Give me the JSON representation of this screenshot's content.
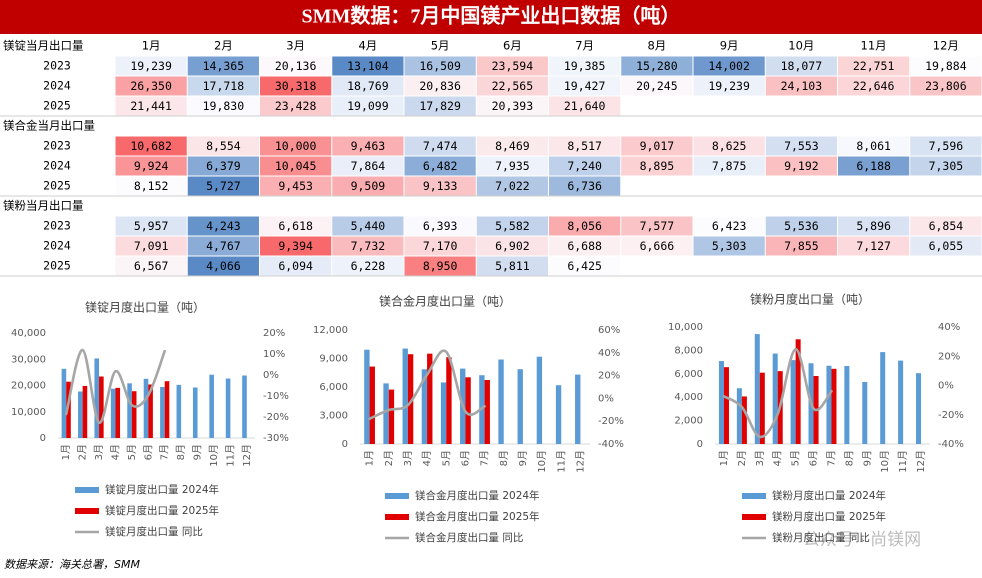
{
  "title": "SMM数据：7月中国镁产业出口数据（吨）",
  "table": {
    "columns": [
      "1月",
      "2月",
      "3月",
      "4月",
      "5月",
      "6月",
      "7月",
      "8月",
      "9月",
      "10月",
      "11月",
      "12月"
    ],
    "color_scale": {
      "low": "#5a8ac6",
      "mid": "#fcfcff",
      "high": "#f8696b"
    },
    "sections": [
      {
        "name": "镁锭当月出口量",
        "rows": [
          {
            "label": "2023",
            "cells": [
              "19,239",
              "14,365",
              "20,136",
              "13,104",
              "16,509",
              "23,594",
              "19,385",
              "15,280",
              "14,002",
              "18,077",
              "22,751",
              "19,884"
            ]
          },
          {
            "label": "2024",
            "cells": [
              "26,350",
              "17,718",
              "30,318",
              "18,769",
              "20,836",
              "22,565",
              "19,427",
              "20,245",
              "19,239",
              "24,103",
              "22,646",
              "23,806"
            ]
          },
          {
            "label": "2025",
            "cells": [
              "21,441",
              "19,830",
              "23,428",
              "19,099",
              "17,829",
              "20,393",
              "21,640"
            ]
          }
        ]
      },
      {
        "name": "镁合金当月出口量",
        "rows": [
          {
            "label": "2023",
            "cells": [
              "10,682",
              "8,554",
              "10,000",
              "9,463",
              "7,474",
              "8,469",
              "8,517",
              "9,017",
              "8,625",
              "7,553",
              "8,061",
              "7,596"
            ]
          },
          {
            "label": "2024",
            "cells": [
              "9,924",
              "6,379",
              "10,045",
              "7,864",
              "6,482",
              "7,935",
              "7,240",
              "8,895",
              "7,875",
              "9,192",
              "6,188",
              "7,305"
            ]
          },
          {
            "label": "2025",
            "cells": [
              "8,152",
              "5,727",
              "9,453",
              "9,509",
              "9,133",
              "7,022",
              "6,736"
            ]
          }
        ]
      },
      {
        "name": "镁粉当月出口量",
        "rows": [
          {
            "label": "2023",
            "cells": [
              "5,957",
              "4,243",
              "6,618",
              "5,440",
              "6,393",
              "5,582",
              "8,056",
              "7,577",
              "6,423",
              "5,536",
              "5,896",
              "6,854"
            ]
          },
          {
            "label": "2024",
            "cells": [
              "7,091",
              "4,767",
              "9,394",
              "7,732",
              "7,170",
              "6,902",
              "6,688",
              "6,666",
              "5,303",
              "7,855",
              "7,127",
              "6,055"
            ]
          },
          {
            "label": "2025",
            "cells": [
              "6,567",
              "4,066",
              "6,094",
              "6,228",
              "8,950",
              "5,811",
              "6,425"
            ]
          }
        ]
      }
    ]
  },
  "chart_data": [
    {
      "type": "bar",
      "title": "镁锭月度出口量（吨）",
      "categories": [
        "1月",
        "2月",
        "3月",
        "4月",
        "5月",
        "6月",
        "7月",
        "8月",
        "9月",
        "10月",
        "11月",
        "12月"
      ],
      "ylim": [
        0,
        40000
      ],
      "yticks": [
        0,
        {
          "value": 10000,
          "label": "10,000"
        },
        {
          "value": 20000,
          "label": "20,000"
        },
        {
          "value": 30000,
          "label": "30,000"
        },
        {
          "value": 40000,
          "label": "40,000"
        }
      ],
      "y2lim": [
        -30,
        20
      ],
      "y2ticks": [
        {
          "value": -30,
          "label": "-30%"
        },
        {
          "value": -20,
          "label": "-20%"
        },
        {
          "value": -10,
          "label": "-10%"
        },
        {
          "value": 0,
          "label": "0%"
        },
        {
          "value": 10,
          "label": "10%"
        },
        {
          "value": 20,
          "label": "20%"
        }
      ],
      "series": [
        {
          "name": "镁锭月度出口量 2024年",
          "type": "bar",
          "color": "#5b9bd5",
          "values": [
            26350,
            17718,
            30318,
            18769,
            20836,
            22565,
            19427,
            20245,
            19239,
            24103,
            22646,
            23806
          ]
        },
        {
          "name": "镁锭月度出口量 2025年",
          "type": "bar",
          "color": "#e00000",
          "values": [
            21441,
            19830,
            23428,
            19099,
            17829,
            20393,
            21640,
            null,
            null,
            null,
            null,
            null
          ]
        },
        {
          "name": "镁锭月度出口量 同比",
          "type": "line",
          "axis": "y2",
          "color": "#a6a6a6",
          "values": [
            -18.6,
            11.9,
            -22.7,
            1.8,
            -14.4,
            -9.6,
            11.4,
            null,
            null,
            null,
            null,
            null
          ]
        }
      ]
    },
    {
      "type": "bar",
      "title": "镁合金月度出口量（吨）",
      "categories": [
        "1月",
        "2月",
        "3月",
        "4月",
        "5月",
        "6月",
        "7月",
        "8月",
        "9月",
        "10月",
        "11月",
        "12月"
      ],
      "ylim": [
        0,
        12000
      ],
      "yticks": [
        0,
        {
          "value": 3000,
          "label": "3,000"
        },
        {
          "value": 6000,
          "label": "6,000"
        },
        {
          "value": 9000,
          "label": "9,000"
        },
        {
          "value": 12000,
          "label": "12,000"
        }
      ],
      "y2lim": [
        -40,
        60
      ],
      "y2ticks": [
        {
          "value": -40,
          "label": "-40%"
        },
        {
          "value": -20,
          "label": "-20%"
        },
        {
          "value": 0,
          "label": "0%"
        },
        {
          "value": 20,
          "label": "20%"
        },
        {
          "value": 40,
          "label": "40%"
        },
        {
          "value": 60,
          "label": "60%"
        }
      ],
      "series": [
        {
          "name": "镁合金月度出口量 2024年",
          "type": "bar",
          "color": "#5b9bd5",
          "values": [
            9924,
            6379,
            10045,
            7864,
            6482,
            7935,
            7240,
            8895,
            7875,
            9192,
            6188,
            7305
          ]
        },
        {
          "name": "镁合金月度出口量 2025年",
          "type": "bar",
          "color": "#e00000",
          "values": [
            8152,
            5727,
            9453,
            9509,
            9133,
            7022,
            6736,
            null,
            null,
            null,
            null,
            null
          ]
        },
        {
          "name": "镁合金月度出口量 同比",
          "type": "line",
          "axis": "y2",
          "color": "#a6a6a6",
          "values": [
            -17.9,
            -10.2,
            -5.9,
            20.9,
            40.9,
            -11.5,
            -7.0,
            null,
            null,
            null,
            null,
            null
          ]
        }
      ]
    },
    {
      "type": "bar",
      "title": "镁粉月度出口量（吨）",
      "categories": [
        "1月",
        "2月",
        "3月",
        "4月",
        "5月",
        "6月",
        "7月",
        "8月",
        "9月",
        "10月",
        "11月",
        "12月"
      ],
      "ylim": [
        0,
        10000
      ],
      "yticks": [
        0,
        {
          "value": 2000,
          "label": "2,000"
        },
        {
          "value": 4000,
          "label": "4,000"
        },
        {
          "value": 6000,
          "label": "6,000"
        },
        {
          "value": 8000,
          "label": "8,000"
        },
        {
          "value": 10000,
          "label": "10,000"
        }
      ],
      "y2lim": [
        -40,
        40
      ],
      "y2ticks": [
        {
          "value": -40,
          "label": "-40%"
        },
        {
          "value": -20,
          "label": "-20%"
        },
        {
          "value": 0,
          "label": "0%"
        },
        {
          "value": 20,
          "label": "20%"
        },
        {
          "value": 40,
          "label": "40%"
        }
      ],
      "series": [
        {
          "name": "镁粉月度出口量 2024年",
          "type": "bar",
          "color": "#5b9bd5",
          "values": [
            7091,
            4767,
            9394,
            7732,
            7170,
            6902,
            6688,
            6666,
            5303,
            7855,
            7127,
            6055
          ]
        },
        {
          "name": "镁粉月度出口量 2025年",
          "type": "bar",
          "color": "#e00000",
          "values": [
            6567,
            4066,
            6094,
            6228,
            8950,
            5811,
            6425,
            null,
            null,
            null,
            null,
            null
          ]
        },
        {
          "name": "镁粉月度出口量 同比",
          "type": "line",
          "axis": "y2",
          "color": "#a6a6a6",
          "values": [
            -7.4,
            -14.7,
            -35.1,
            -19.5,
            24.8,
            -15.8,
            -3.9,
            null,
            null,
            null,
            null,
            null
          ]
        }
      ]
    }
  ],
  "source": "数据来源：海关总署，SMM",
  "watermark": "公众号 · 尚镁网"
}
